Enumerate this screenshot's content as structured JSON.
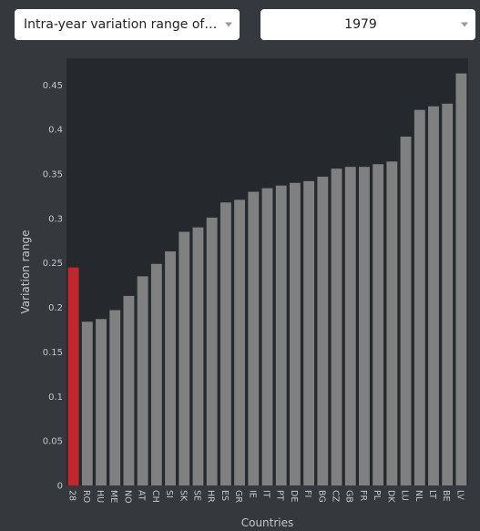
{
  "controls": {
    "variable_select": "Intra-year variation range of the…",
    "year_select": "1979"
  },
  "colors": {
    "background": "#35393e",
    "plot_background": "#25282c",
    "bar": "#808080",
    "highlight": "#c1272d",
    "text": "#c4c7cb"
  },
  "chart_data": {
    "type": "bar",
    "xlabel": "Countries",
    "ylabel": "Variation range",
    "ylim": [
      0,
      0.48
    ],
    "yticks": [
      0,
      0.05,
      0.1,
      0.15,
      0.2,
      0.25,
      0.3,
      0.35,
      0.4,
      0.45
    ],
    "ytick_labels": [
      "0",
      "0.05",
      "0.1",
      "0.15",
      "0.2",
      "0.25",
      "0.3",
      "0.35",
      "0.4",
      "0.45"
    ],
    "grid": false,
    "highlight_category": "28",
    "categories": [
      "28",
      "RO",
      "HU",
      "ME",
      "NO",
      "AT",
      "CH",
      "SI",
      "SK",
      "SE",
      "HR",
      "ES",
      "GR",
      "IE",
      "IT",
      "PT",
      "DE",
      "FI",
      "BG",
      "CZ",
      "GB",
      "FR",
      "PL",
      "DK",
      "LU",
      "NL",
      "LT",
      "BE",
      "LV"
    ],
    "values": [
      0.245,
      0.184,
      0.187,
      0.197,
      0.213,
      0.235,
      0.249,
      0.263,
      0.285,
      0.29,
      0.301,
      0.318,
      0.321,
      0.33,
      0.334,
      0.337,
      0.34,
      0.342,
      0.347,
      0.356,
      0.358,
      0.358,
      0.361,
      0.364,
      0.392,
      0.422,
      0.426,
      0.429,
      0.463
    ]
  }
}
